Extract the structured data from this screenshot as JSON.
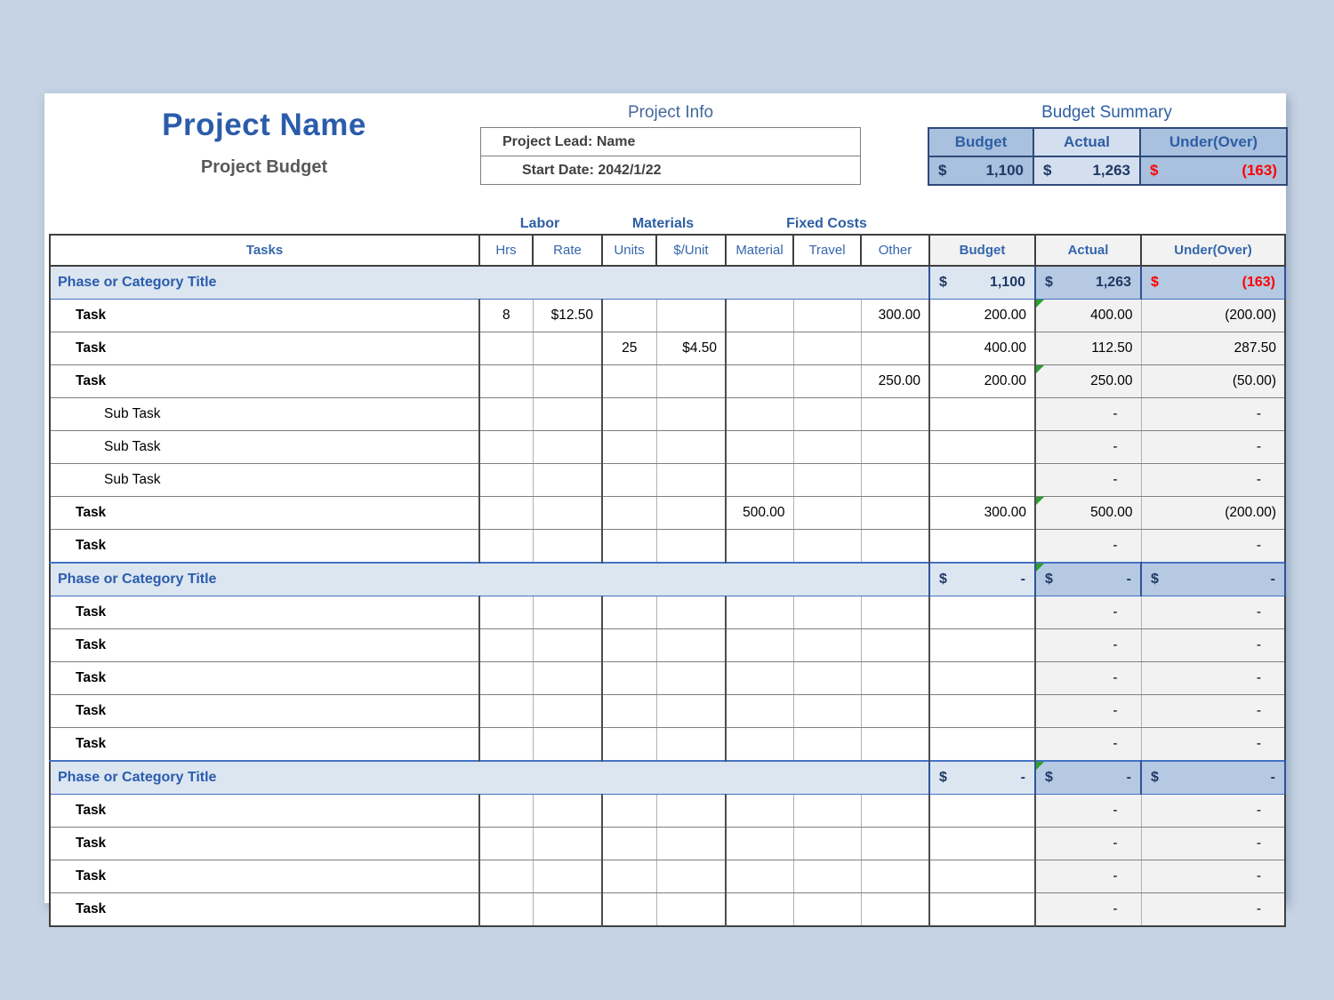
{
  "colors": {
    "page_background": "#C5D3E4",
    "accent_blue": "#2E5FA3",
    "navy_value": "#1F3864",
    "negative_red": "#FF0000",
    "phase_light_blue": "#DCE6F1",
    "phase_medium_blue": "#B5C9E2",
    "summary_dark_blue": "#A9C1DE",
    "summary_light_blue": "#D3DEEF",
    "readonly_gray": "#F2F2F2",
    "green_corner_marker": "#2E9E2E"
  },
  "header": {
    "project_name": "Project Name",
    "subtitle": "Project Budget",
    "info_title": "Project Info",
    "info_rows": [
      {
        "label": "Project Lead:",
        "value": "Name"
      },
      {
        "label": "Start Date:",
        "value": "2042/1/22"
      }
    ],
    "summary_title": "Budget Summary",
    "summary_headers": [
      "Budget",
      "Actual",
      "Under(Over)"
    ],
    "summary_values": [
      {
        "currency": "$",
        "amount": "1,100",
        "red": false
      },
      {
        "currency": "$",
        "amount": "1,263",
        "red": false
      },
      {
        "currency": "$",
        "amount": "(163)",
        "red": true
      }
    ]
  },
  "table": {
    "group_labels": [
      "Labor",
      "Materials",
      "Fixed Costs"
    ],
    "column_headers": [
      "Tasks",
      "Hrs",
      "Rate",
      "Units",
      "$/Unit",
      "Material",
      "Travel",
      "Other",
      "Budget",
      "Actual",
      "Under(Over)"
    ],
    "sections": [
      {
        "title": "Phase or Category Title",
        "budget": {
          "currency": "$",
          "amount": "1,100"
        },
        "actual": {
          "currency": "$",
          "amount": "1,263",
          "green_corner": false
        },
        "under": {
          "currency": "$",
          "amount": "(163)",
          "red": true
        },
        "rows": [
          {
            "label": "Task",
            "type": "task",
            "hrs": "8",
            "rate": "$12.50",
            "units": "",
            "unit_cost": "",
            "material": "",
            "travel": "",
            "other": "300.00",
            "budget": "200.00",
            "actual": "400.00",
            "actual_green_corner": true,
            "under": "(200.00)",
            "under_red": true
          },
          {
            "label": "Task",
            "type": "task",
            "hrs": "",
            "rate": "",
            "units": "25",
            "unit_cost": "$4.50",
            "material": "",
            "travel": "",
            "other": "",
            "budget": "400.00",
            "actual": "112.50",
            "actual_green_corner": false,
            "under": "287.50",
            "under_red": false
          },
          {
            "label": "Task",
            "type": "task",
            "hrs": "",
            "rate": "",
            "units": "",
            "unit_cost": "",
            "material": "",
            "travel": "",
            "other": "250.00",
            "budget": "200.00",
            "actual": "250.00",
            "actual_green_corner": true,
            "under": "(50.00)",
            "under_red": true
          },
          {
            "label": "Sub Task",
            "type": "subtask",
            "hrs": "",
            "rate": "",
            "units": "",
            "unit_cost": "",
            "material": "",
            "travel": "",
            "other": "",
            "budget": "",
            "actual": "-",
            "actual_green_corner": false,
            "under": "-",
            "under_red": false
          },
          {
            "label": "Sub Task",
            "type": "subtask",
            "hrs": "",
            "rate": "",
            "units": "",
            "unit_cost": "",
            "material": "",
            "travel": "",
            "other": "",
            "budget": "",
            "actual": "-",
            "actual_green_corner": false,
            "under": "-",
            "under_red": false
          },
          {
            "label": "Sub Task",
            "type": "subtask",
            "hrs": "",
            "rate": "",
            "units": "",
            "unit_cost": "",
            "material": "",
            "travel": "",
            "other": "",
            "budget": "",
            "actual": "-",
            "actual_green_corner": false,
            "under": "-",
            "under_red": false
          },
          {
            "label": "Task",
            "type": "task",
            "hrs": "",
            "rate": "",
            "units": "",
            "unit_cost": "",
            "material": "500.00",
            "travel": "",
            "other": "",
            "budget": "300.00",
            "actual": "500.00",
            "actual_green_corner": true,
            "under": "(200.00)",
            "under_red": true
          },
          {
            "label": "Task",
            "type": "task",
            "hrs": "",
            "rate": "",
            "units": "",
            "unit_cost": "",
            "material": "",
            "travel": "",
            "other": "",
            "budget": "",
            "actual": "-",
            "actual_green_corner": false,
            "under": "-",
            "under_red": false
          }
        ]
      },
      {
        "title": "Phase or Category Title",
        "budget": {
          "currency": "$",
          "amount": "-"
        },
        "actual": {
          "currency": "$",
          "amount": "-",
          "green_corner": true
        },
        "under": {
          "currency": "$",
          "amount": "-",
          "red": false
        },
        "rows": [
          {
            "label": "Task",
            "type": "task",
            "hrs": "",
            "rate": "",
            "units": "",
            "unit_cost": "",
            "material": "",
            "travel": "",
            "other": "",
            "budget": "",
            "actual": "-",
            "actual_green_corner": false,
            "under": "-",
            "under_red": false
          },
          {
            "label": "Task",
            "type": "task",
            "hrs": "",
            "rate": "",
            "units": "",
            "unit_cost": "",
            "material": "",
            "travel": "",
            "other": "",
            "budget": "",
            "actual": "-",
            "actual_green_corner": false,
            "under": "-",
            "under_red": false
          },
          {
            "label": "Task",
            "type": "task",
            "hrs": "",
            "rate": "",
            "units": "",
            "unit_cost": "",
            "material": "",
            "travel": "",
            "other": "",
            "budget": "",
            "actual": "-",
            "actual_green_corner": false,
            "under": "-",
            "under_red": false
          },
          {
            "label": "Task",
            "type": "task",
            "hrs": "",
            "rate": "",
            "units": "",
            "unit_cost": "",
            "material": "",
            "travel": "",
            "other": "",
            "budget": "",
            "actual": "-",
            "actual_green_corner": false,
            "under": "-",
            "under_red": false
          },
          {
            "label": "Task",
            "type": "task",
            "hrs": "",
            "rate": "",
            "units": "",
            "unit_cost": "",
            "material": "",
            "travel": "",
            "other": "",
            "budget": "",
            "actual": "-",
            "actual_green_corner": false,
            "under": "-",
            "under_red": false
          }
        ]
      },
      {
        "title": "Phase or Category Title",
        "budget": {
          "currency": "$",
          "amount": "-"
        },
        "actual": {
          "currency": "$",
          "amount": "-",
          "green_corner": true
        },
        "under": {
          "currency": "$",
          "amount": "-",
          "red": false
        },
        "rows": [
          {
            "label": "Task",
            "type": "task",
            "hrs": "",
            "rate": "",
            "units": "",
            "unit_cost": "",
            "material": "",
            "travel": "",
            "other": "",
            "budget": "",
            "actual": "-",
            "actual_green_corner": false,
            "under": "-",
            "under_red": false
          },
          {
            "label": "Task",
            "type": "task",
            "hrs": "",
            "rate": "",
            "units": "",
            "unit_cost": "",
            "material": "",
            "travel": "",
            "other": "",
            "budget": "",
            "actual": "-",
            "actual_green_corner": false,
            "under": "-",
            "under_red": false
          },
          {
            "label": "Task",
            "type": "task",
            "hrs": "",
            "rate": "",
            "units": "",
            "unit_cost": "",
            "material": "",
            "travel": "",
            "other": "",
            "budget": "",
            "actual": "-",
            "actual_green_corner": false,
            "under": "-",
            "under_red": false
          },
          {
            "label": "Task",
            "type": "task",
            "hrs": "",
            "rate": "",
            "units": "",
            "unit_cost": "",
            "material": "",
            "travel": "",
            "other": "",
            "budget": "",
            "actual": "-",
            "actual_green_corner": false,
            "under": "-",
            "under_red": false
          }
        ]
      }
    ]
  }
}
